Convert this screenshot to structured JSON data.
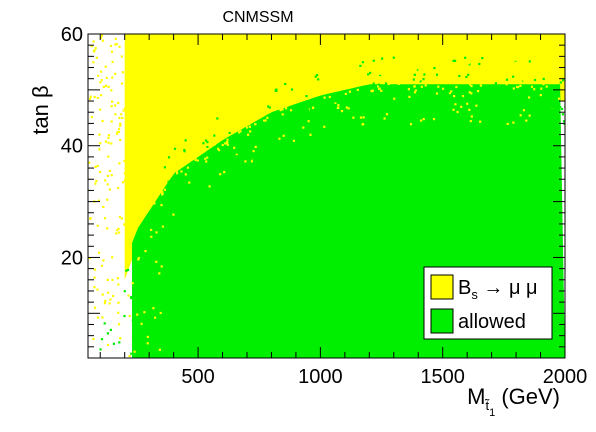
{
  "chart_data": {
    "type": "scatter",
    "title": "CNMSSM",
    "xlabel": {
      "main": "M",
      "sub": "t̃",
      "subsub": "1",
      "unit": "(GeV)"
    },
    "ylabel": {
      "text": "tan β"
    },
    "xlim": [
      50,
      2000
    ],
    "ylim": [
      2,
      60
    ],
    "x_ticks": [
      500,
      1000,
      1500,
      2000
    ],
    "y_ticks": [
      20,
      40,
      60
    ],
    "grid": false,
    "legend_placement": "bottom-right",
    "legend": [
      {
        "label": "B_s → μ μ",
        "main": "B",
        "sub": "s",
        "rest": " → μ μ",
        "color": "#ffff00"
      },
      {
        "label": "allowed",
        "color": "#00ee00"
      }
    ],
    "series": [
      {
        "name": "B_s → μ μ",
        "color": "#ffff00",
        "description_of_region": "tan beta above the allowed boundary",
        "boundary_x": [
          60,
          150,
          250,
          400,
          600,
          800,
          1000,
          1200,
          1500,
          1800,
          2000
        ],
        "boundary_y": [
          4,
          12,
          24,
          34,
          40,
          45,
          48,
          50,
          50,
          50,
          50
        ]
      },
      {
        "name": "allowed",
        "color": "#00ee00",
        "boundary_x": [
          60,
          150,
          250,
          400,
          600,
          800,
          1000,
          1200,
          1500,
          1800,
          2000
        ],
        "boundary_y": [
          4,
          12,
          24,
          34,
          40,
          45,
          48,
          50,
          50,
          50,
          50
        ]
      }
    ]
  }
}
